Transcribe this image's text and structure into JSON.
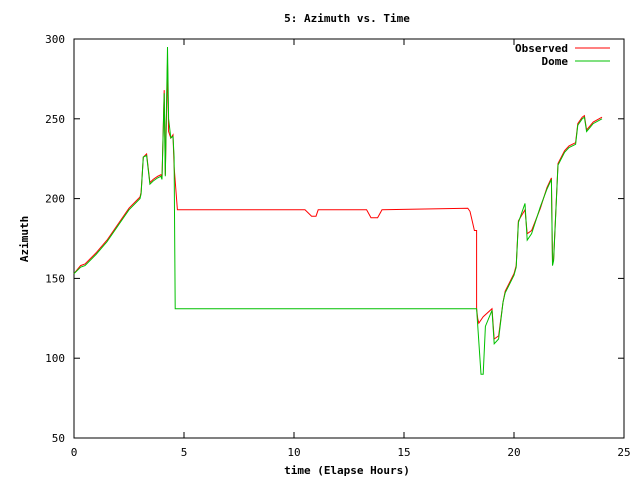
{
  "chart_data": {
    "type": "line",
    "title": "5: Azimuth vs. Time",
    "xlabel": "time (Elapse Hours)",
    "ylabel": "Azimuth",
    "xlim": [
      0,
      25
    ],
    "ylim": [
      50,
      300
    ],
    "xticks": [
      0,
      5,
      10,
      15,
      20,
      25
    ],
    "yticks": [
      50,
      100,
      150,
      200,
      250,
      300
    ],
    "grid": false,
    "legend_position": "top-right",
    "series": [
      {
        "name": "Observed",
        "color": "#ff0000",
        "points": [
          [
            0.0,
            153
          ],
          [
            0.3,
            158
          ],
          [
            0.5,
            159
          ],
          [
            1.0,
            166
          ],
          [
            1.5,
            174
          ],
          [
            2.0,
            184
          ],
          [
            2.5,
            194
          ],
          [
            3.0,
            201
          ],
          [
            3.05,
            204
          ],
          [
            3.15,
            226
          ],
          [
            3.3,
            228
          ],
          [
            3.45,
            210
          ],
          [
            3.6,
            212
          ],
          [
            3.8,
            214
          ],
          [
            3.95,
            215
          ],
          [
            4.0,
            213
          ],
          [
            4.1,
            268
          ],
          [
            4.15,
            215
          ],
          [
            4.25,
            285
          ],
          [
            4.3,
            242
          ],
          [
            4.4,
            238
          ],
          [
            4.5,
            240
          ],
          [
            4.55,
            220
          ],
          [
            4.7,
            193
          ],
          [
            10.5,
            193
          ],
          [
            10.8,
            189
          ],
          [
            11.0,
            189
          ],
          [
            11.1,
            193
          ],
          [
            13.3,
            193
          ],
          [
            13.5,
            188
          ],
          [
            13.8,
            188
          ],
          [
            14.0,
            193
          ],
          [
            17.9,
            194
          ],
          [
            18.0,
            192
          ],
          [
            18.1,
            186
          ],
          [
            18.2,
            180
          ],
          [
            18.3,
            180
          ],
          [
            18.3,
            131
          ],
          [
            18.35,
            125
          ],
          [
            18.4,
            122
          ],
          [
            18.6,
            126
          ],
          [
            19.0,
            131
          ],
          [
            19.1,
            112
          ],
          [
            19.3,
            114
          ],
          [
            19.5,
            135
          ],
          [
            19.6,
            142
          ],
          [
            20.0,
            153
          ],
          [
            20.1,
            158
          ],
          [
            20.2,
            186
          ],
          [
            20.5,
            193
          ],
          [
            20.6,
            178
          ],
          [
            20.8,
            180
          ],
          [
            21.2,
            194
          ],
          [
            21.5,
            207
          ],
          [
            21.7,
            213
          ],
          [
            21.75,
            160
          ],
          [
            21.8,
            162
          ],
          [
            22.0,
            222
          ],
          [
            22.3,
            230
          ],
          [
            22.5,
            233
          ],
          [
            22.8,
            235
          ],
          [
            22.9,
            247
          ],
          [
            23.1,
            251
          ],
          [
            23.2,
            252
          ],
          [
            23.3,
            243
          ],
          [
            23.6,
            248
          ],
          [
            24.0,
            251
          ]
        ]
      },
      {
        "name": "Dome",
        "color": "#00c000",
        "points": [
          [
            0.0,
            153
          ],
          [
            0.3,
            157
          ],
          [
            0.5,
            158
          ],
          [
            1.0,
            165
          ],
          [
            1.5,
            173
          ],
          [
            2.0,
            183
          ],
          [
            2.5,
            193
          ],
          [
            3.0,
            200
          ],
          [
            3.05,
            203
          ],
          [
            3.15,
            226
          ],
          [
            3.3,
            227
          ],
          [
            3.45,
            209
          ],
          [
            3.6,
            211
          ],
          [
            3.8,
            213
          ],
          [
            3.95,
            214
          ],
          [
            4.0,
            212
          ],
          [
            4.1,
            266
          ],
          [
            4.15,
            214
          ],
          [
            4.25,
            295
          ],
          [
            4.3,
            250
          ],
          [
            4.4,
            238
          ],
          [
            4.5,
            239
          ],
          [
            4.55,
            226
          ],
          [
            4.6,
            131
          ],
          [
            18.3,
            131
          ],
          [
            18.5,
            90
          ],
          [
            18.6,
            90
          ],
          [
            18.7,
            120
          ],
          [
            19.0,
            130
          ],
          [
            19.1,
            109
          ],
          [
            19.3,
            112
          ],
          [
            19.5,
            135
          ],
          [
            19.6,
            141
          ],
          [
            20.0,
            152
          ],
          [
            20.1,
            157
          ],
          [
            20.2,
            185
          ],
          [
            20.5,
            197
          ],
          [
            20.6,
            174
          ],
          [
            20.8,
            178
          ],
          [
            21.2,
            195
          ],
          [
            21.5,
            206
          ],
          [
            21.7,
            212
          ],
          [
            21.75,
            158
          ],
          [
            21.8,
            161
          ],
          [
            22.0,
            221
          ],
          [
            22.3,
            229
          ],
          [
            22.5,
            232
          ],
          [
            22.8,
            234
          ],
          [
            22.9,
            246
          ],
          [
            23.1,
            250
          ],
          [
            23.2,
            251
          ],
          [
            23.3,
            242
          ],
          [
            23.6,
            247
          ],
          [
            24.0,
            250
          ]
        ]
      }
    ]
  }
}
